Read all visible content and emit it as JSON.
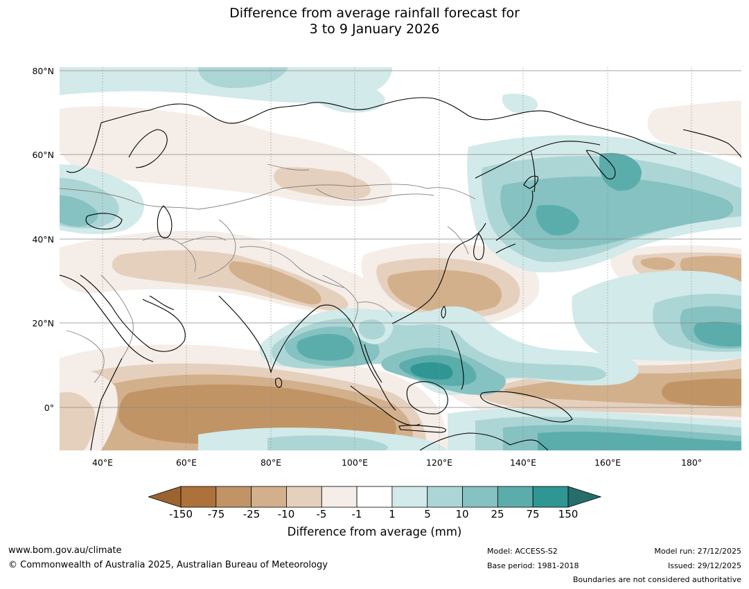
{
  "title": {
    "line1": "Difference from average rainfall forecast for",
    "line2": "3 to 9 January 2026"
  },
  "map": {
    "lat_labels": [
      "80°N",
      "60°N",
      "40°N",
      "20°N",
      "0°"
    ],
    "lon_labels": [
      "40°E",
      "60°E",
      "80°E",
      "100°E",
      "120°E",
      "140°E",
      "160°E",
      "180°"
    ],
    "lat_range": [
      -10,
      81
    ],
    "lon_range": [
      30,
      192
    ],
    "palette": {
      "-150": "#a66e36",
      "-75": "#c19466",
      "-25": "#d3b08c",
      "-10": "#e5d0bd",
      "-5": "#f5ede7",
      "0": "#ffffff",
      "1": "#d2eae9",
      "5": "#acd6d5",
      "10": "#85c2c1",
      "25": "#5badac",
      "75": "#2f9694",
      "150": "#1f7572"
    },
    "coast_color": "#000000",
    "border_color": "#808080"
  },
  "colorbar": {
    "labels": [
      "-150",
      "-75",
      "-25",
      "-10",
      "-5",
      "-1",
      "1",
      "5",
      "10",
      "25",
      "75",
      "150"
    ],
    "colors": [
      "#ad723b",
      "#c19466",
      "#d3b08c",
      "#e5d0bd",
      "#f5ede7",
      "#ffffff",
      "#d2eae9",
      "#acd6d5",
      "#85c2c1",
      "#5badac",
      "#2f9694"
    ],
    "low_extend_color": "#9b6330",
    "high_extend_color": "#276d6b",
    "title": "Difference from average (mm)"
  },
  "footer": {
    "url": "www.bom.gov.au/climate",
    "copyright": "© Commonwealth of Australia 2025, Australian Bureau of Meteorology",
    "model": "Model: ACCESS-S2",
    "base_period": "Base period: 1981-2018",
    "model_run": "Model run: 27/12/2025",
    "issued": "Issued: 29/12/2025",
    "disclaimer": "Boundaries are not considered authoritative"
  }
}
